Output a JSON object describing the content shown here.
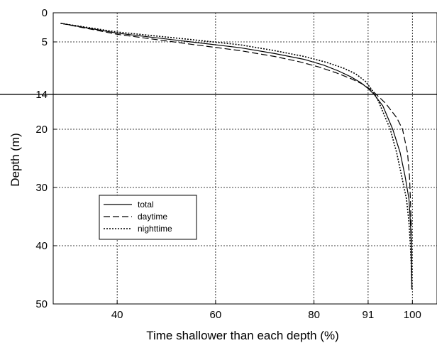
{
  "chart_data": {
    "type": "line",
    "title": "",
    "xlabel": "Time shallower than each depth (%)",
    "ylabel": "Depth (m)",
    "xlim": [
      27,
      105
    ],
    "ylim": [
      0,
      50
    ],
    "y_inverted": true,
    "x_ticks": [
      40,
      60,
      80,
      91,
      100
    ],
    "x_tick_labels": [
      "40",
      "60",
      "80",
      "91",
      "100"
    ],
    "y_ticks": [
      0,
      5,
      14,
      20,
      30,
      40,
      50
    ],
    "y_tick_labels": [
      "0",
      "5",
      "14",
      "20",
      "30",
      "40",
      "50"
    ],
    "grid": true,
    "highlight_depth": 14,
    "legend": {
      "position": "left-middle",
      "entries": [
        "total",
        "daytime",
        "nighttime"
      ]
    },
    "series": [
      {
        "name": "total",
        "style": "solid",
        "points": [
          [
            28.5,
            1.8
          ],
          [
            40,
            3.5
          ],
          [
            55,
            5.0
          ],
          [
            65,
            6.0
          ],
          [
            72,
            7.0
          ],
          [
            78,
            8.0
          ],
          [
            82,
            9.0
          ],
          [
            85,
            10.0
          ],
          [
            87.5,
            11.0
          ],
          [
            89.5,
            12.0
          ],
          [
            91,
            13.0
          ],
          [
            92.2,
            14.0
          ],
          [
            94,
            16.0
          ],
          [
            96,
            20.0
          ],
          [
            97.5,
            24.0
          ],
          [
            98.5,
            28.0
          ],
          [
            99.3,
            32.0
          ],
          [
            99.6,
            36.0
          ],
          [
            99.8,
            40.0
          ],
          [
            99.85,
            44.0
          ],
          [
            99.9,
            47.5
          ]
        ]
      },
      {
        "name": "daytime",
        "style": "dashed",
        "points": [
          [
            28.5,
            1.8
          ],
          [
            40,
            3.7
          ],
          [
            55,
            5.4
          ],
          [
            65,
            6.5
          ],
          [
            72,
            7.5
          ],
          [
            77,
            8.4
          ],
          [
            81,
            9.3
          ],
          [
            84.5,
            10.3
          ],
          [
            87.5,
            11.3
          ],
          [
            90,
            12.3
          ],
          [
            92,
            13.5
          ],
          [
            94.5,
            15.5
          ],
          [
            96.8,
            18.0
          ],
          [
            98,
            20.0
          ],
          [
            99,
            24.0
          ],
          [
            99.4,
            28.0
          ],
          [
            99.6,
            32.0
          ],
          [
            99.75,
            36.0
          ],
          [
            99.8,
            40.0
          ],
          [
            99.85,
            44.0
          ],
          [
            99.9,
            47.5
          ]
        ]
      },
      {
        "name": "nighttime",
        "style": "dotted",
        "points": [
          [
            28.5,
            1.8
          ],
          [
            40,
            3.3
          ],
          [
            55,
            4.6
          ],
          [
            65,
            5.5
          ],
          [
            72,
            6.5
          ],
          [
            78,
            7.5
          ],
          [
            82.5,
            8.5
          ],
          [
            86,
            9.5
          ],
          [
            88.5,
            10.5
          ],
          [
            90.5,
            11.8
          ],
          [
            92,
            13.5
          ],
          [
            93,
            15.0
          ],
          [
            94.5,
            18.0
          ],
          [
            95.5,
            20.0
          ],
          [
            96.8,
            24.0
          ],
          [
            97.8,
            28.0
          ],
          [
            98.8,
            32.0
          ],
          [
            99.3,
            36.0
          ],
          [
            99.6,
            40.0
          ],
          [
            99.8,
            44.0
          ],
          [
            99.9,
            47.5
          ]
        ]
      }
    ]
  }
}
